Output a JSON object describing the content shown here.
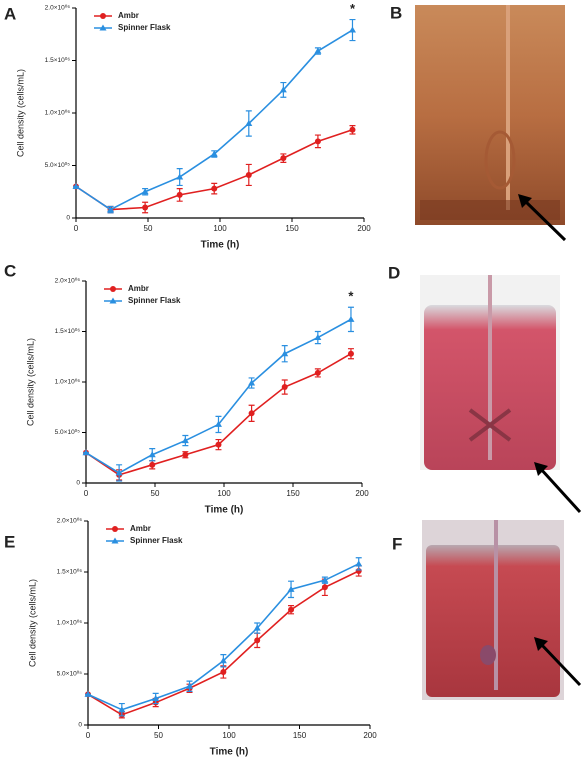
{
  "chart_data": [
    {
      "type": "line",
      "panel_label": "A",
      "xlabel": "Time (h)",
      "ylabel": "Cell density (cells/mL)",
      "annotation": "*",
      "x": [
        0,
        24,
        48,
        72,
        96,
        120,
        144,
        168,
        192
      ],
      "xlim": [
        0,
        200
      ],
      "xticks": [
        0,
        50,
        100,
        150,
        200
      ],
      "ylim": [
        0,
        2000000
      ],
      "yticks": [
        0,
        {
          "value": 500000,
          "label": "5.0×10⁰⁵"
        },
        {
          "value": 1000000,
          "label": "1.0×10⁰⁶"
        },
        {
          "value": 1500000,
          "label": "1.5×10⁰⁶"
        },
        {
          "value": 2000000,
          "label": "2.0×10⁰⁶"
        }
      ],
      "series": [
        {
          "name": "Ambr",
          "color": "#e02020",
          "marker": "circle",
          "values": [
            300000,
            80000,
            100000,
            220000,
            280000,
            410000,
            570000,
            730000,
            840000
          ],
          "errors": [
            0,
            30000,
            50000,
            60000,
            50000,
            100000,
            40000,
            60000,
            40000
          ]
        },
        {
          "name": "Spinner Flask",
          "color": "#2a8fe0",
          "marker": "triangle",
          "values": [
            300000,
            80000,
            250000,
            390000,
            610000,
            900000,
            1220000,
            1590000,
            1790000
          ],
          "errors": [
            0,
            30000,
            30000,
            80000,
            30000,
            120000,
            70000,
            30000,
            100000
          ]
        }
      ]
    },
    {
      "type": "line",
      "panel_label": "C",
      "xlabel": "Time (h)",
      "ylabel": "Cell density (cells/mL)",
      "annotation": "*",
      "x": [
        0,
        24,
        48,
        72,
        96,
        120,
        144,
        168,
        192
      ],
      "xlim": [
        0,
        200
      ],
      "xticks": [
        0,
        50,
        100,
        150,
        200
      ],
      "ylim": [
        0,
        2000000
      ],
      "yticks": [
        0,
        {
          "value": 500000,
          "label": "5.0×10⁰⁵"
        },
        {
          "value": 1000000,
          "label": "1.0×10⁰⁶"
        },
        {
          "value": 1500000,
          "label": "1.5×10⁰⁶"
        },
        {
          "value": 2000000,
          "label": "2.0×10⁰⁶"
        }
      ],
      "series": [
        {
          "name": "Ambr",
          "color": "#e02020",
          "marker": "circle",
          "values": [
            300000,
            80000,
            180000,
            280000,
            380000,
            690000,
            950000,
            1090000,
            1280000
          ],
          "errors": [
            0,
            50000,
            40000,
            30000,
            50000,
            80000,
            70000,
            40000,
            50000
          ]
        },
        {
          "name": "Spinner Flask",
          "color": "#2a8fe0",
          "marker": "triangle",
          "values": [
            300000,
            100000,
            280000,
            420000,
            580000,
            990000,
            1280000,
            1440000,
            1620000
          ],
          "errors": [
            0,
            80000,
            60000,
            50000,
            80000,
            50000,
            80000,
            60000,
            120000
          ]
        }
      ]
    },
    {
      "type": "line",
      "panel_label": "E",
      "xlabel": "Time (h)",
      "ylabel": "Cell density (cells/mL)",
      "x": [
        0,
        24,
        48,
        72,
        96,
        120,
        144,
        168,
        192
      ],
      "xlim": [
        0,
        200
      ],
      "xticks": [
        0,
        50,
        100,
        150,
        200
      ],
      "ylim": [
        0,
        2000000
      ],
      "yticks": [
        0,
        {
          "value": 500000,
          "label": "5.0×10⁰⁵"
        },
        {
          "value": 1000000,
          "label": "1.0×10⁰⁶"
        },
        {
          "value": 1500000,
          "label": "1.5×10⁰⁶"
        },
        {
          "value": 2000000,
          "label": "2.0×10⁰⁶"
        }
      ],
      "series": [
        {
          "name": "Ambr",
          "color": "#e02020",
          "marker": "circle",
          "values": [
            300000,
            100000,
            220000,
            360000,
            520000,
            830000,
            1130000,
            1350000,
            1510000
          ],
          "errors": [
            0,
            30000,
            40000,
            40000,
            60000,
            70000,
            40000,
            80000,
            50000
          ]
        },
        {
          "name": "Spinner Flask",
          "color": "#2a8fe0",
          "marker": "triangle",
          "values": [
            300000,
            150000,
            260000,
            380000,
            630000,
            950000,
            1330000,
            1420000,
            1580000
          ],
          "errors": [
            0,
            60000,
            50000,
            50000,
            60000,
            50000,
            80000,
            30000,
            60000
          ]
        }
      ]
    }
  ],
  "photos": [
    {
      "label": "B"
    },
    {
      "label": "D"
    },
    {
      "label": "F"
    }
  ]
}
